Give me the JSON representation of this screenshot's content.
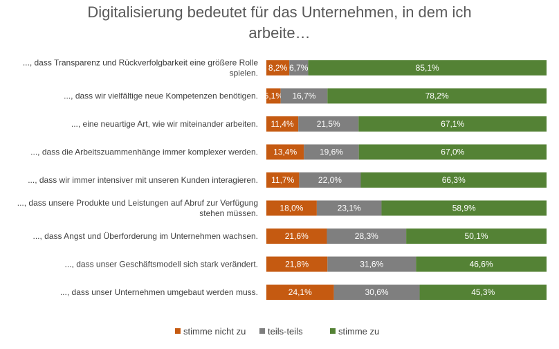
{
  "chart_data": {
    "type": "bar",
    "orientation": "horizontal",
    "stacked": true,
    "title": [
      "Digitalisierung bedeutet für das Unternehmen, in dem ich",
      "arbeite…"
    ],
    "categories": [
      [
        "..., dass Transparenz und Rückverfolgbarkeit eine größere Rolle",
        "spielen."
      ],
      [
        "..., dass wir vielfältige neue Kompetenzen benötigen."
      ],
      [
        "..., eine neuartige Art, wie wir miteinander arbeiten."
      ],
      [
        "..., dass die Arbeitszuammenhänge immer komplexer werden."
      ],
      [
        "..., dass wir immer intensiver mit unseren Kunden interagieren."
      ],
      [
        "..., dass unsere Produkte und Leistungen auf Abruf zur Verfügung",
        "stehen müssen."
      ],
      [
        "..., dass Angst und Überforderung im Unternehmen wachsen."
      ],
      [
        "..., dass unser Geschäftsmodell sich stark verändert."
      ],
      [
        "..., dass unser Unternehmen umgebaut werden muss."
      ]
    ],
    "series": [
      {
        "name": "stimme nicht zu",
        "color": "#c55a11",
        "values": [
          8.2,
          5.1,
          11.4,
          13.4,
          11.7,
          18.0,
          21.6,
          21.8,
          24.1
        ],
        "labels": [
          "8,2%",
          "5,1%",
          "11,4%",
          "13,4%",
          "11,7%",
          "18,0%",
          "21,6%",
          "21,8%",
          "24,1%"
        ]
      },
      {
        "name": "teils-teils",
        "color": "#7f7f7f",
        "values": [
          6.7,
          16.7,
          21.5,
          19.6,
          22.0,
          23.1,
          28.3,
          31.6,
          30.6
        ],
        "labels": [
          "6,7%",
          "16,7%",
          "21,5%",
          "19,6%",
          "22,0%",
          "23,1%",
          "28,3%",
          "31,6%",
          "30,6%"
        ]
      },
      {
        "name": "stimme zu",
        "color": "#548235",
        "values": [
          85.1,
          78.2,
          67.1,
          67.0,
          66.3,
          58.9,
          50.1,
          46.6,
          45.3
        ],
        "labels": [
          "85,1%",
          "78,2%",
          "67,1%",
          "67,0%",
          "66,3%",
          "58,9%",
          "50,1%",
          "46,6%",
          "45,3%"
        ]
      }
    ],
    "xlim": [
      0,
      100
    ],
    "grid": false,
    "legend": "bottom"
  }
}
